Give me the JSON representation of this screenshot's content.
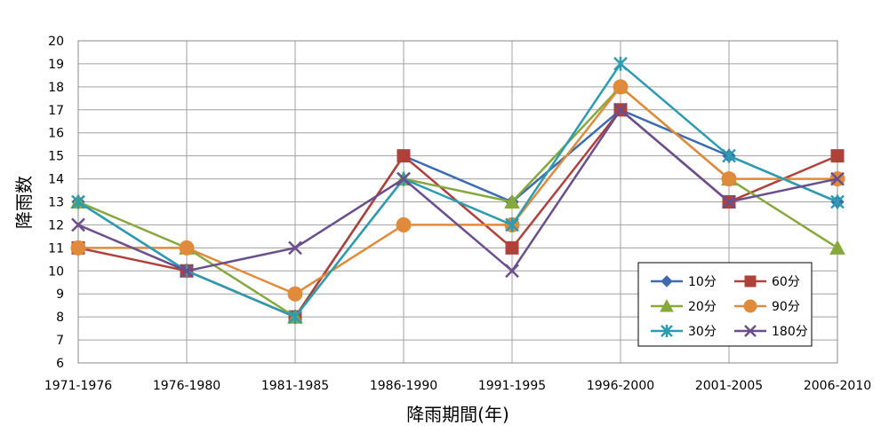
{
  "chart_data": {
    "type": "line",
    "title": "",
    "xlabel": "降雨期間(年)",
    "ylabel": "降雨数",
    "categories": [
      "1971-1976",
      "1976-1980",
      "1981-1985",
      "1986-1990",
      "1991-1995",
      "1996-2000",
      "2001-2005",
      "2006-2010"
    ],
    "ylim": [
      6,
      20
    ],
    "ytick_step": 1,
    "grid": true,
    "legend_position": "bottom-right",
    "series": [
      {
        "name": "10分",
        "color": "#3d6bb0",
        "marker": "diamond",
        "values": [
          13,
          10,
          8,
          15,
          13,
          17,
          15,
          13
        ]
      },
      {
        "name": "60分",
        "color": "#b0403a",
        "marker": "square",
        "values": [
          11,
          10,
          8,
          15,
          11,
          17,
          13,
          15
        ]
      },
      {
        "name": "20分",
        "color": "#86a83d",
        "marker": "triangle",
        "values": [
          13,
          11,
          8,
          14,
          13,
          18,
          14,
          11
        ]
      },
      {
        "name": "90分",
        "color": "#e08a3c",
        "marker": "circle",
        "values": [
          11,
          11,
          9,
          12,
          12,
          18,
          14,
          14
        ]
      },
      {
        "name": "30分",
        "color": "#2e9cb0",
        "marker": "asterisk",
        "values": [
          13,
          10,
          8,
          14,
          12,
          19,
          15,
          13
        ]
      },
      {
        "name": "180分",
        "color": "#6a4f8c",
        "marker": "x",
        "values": [
          12,
          10,
          11,
          14,
          10,
          17,
          13,
          14
        ]
      }
    ]
  }
}
